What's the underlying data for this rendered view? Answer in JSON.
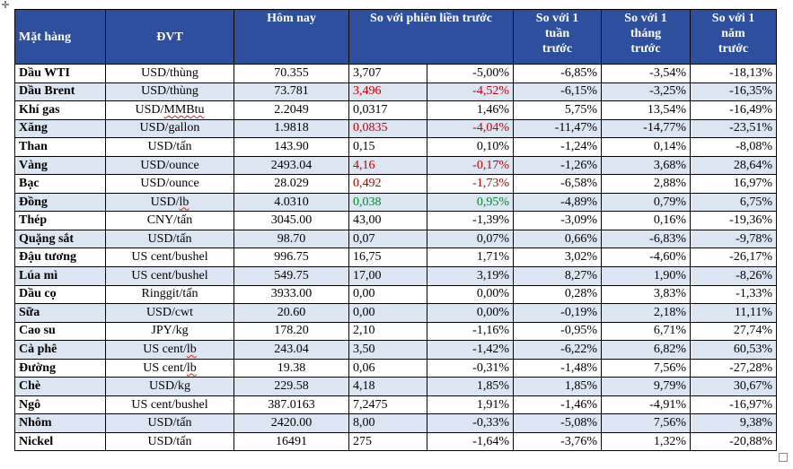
{
  "headers": {
    "name": "Mặt hàng",
    "unit": "ĐVT",
    "price": "Hôm nay",
    "prev_session": "So với phiên liền trước",
    "week_l1": "So với 1",
    "week_l2": "tuần",
    "week_l3": "trước",
    "month_l1": "So với 1",
    "month_l2": "tháng",
    "month_l3": "trước",
    "year_l1": "So với 1",
    "year_l2": "năm",
    "year_l3": "trước"
  },
  "rows": [
    {
      "name": "Dầu WTI",
      "unit": "USD/thùng",
      "price": "70.355",
      "chg": "3,707",
      "pct": "-5,00%",
      "w": "-6,85%",
      "m": "-3,54%",
      "y": "-18,13%",
      "color": ""
    },
    {
      "name": "Dầu Brent",
      "unit": "USD/thùng",
      "price": "73.781",
      "chg": "3,496",
      "pct": "-4,52%",
      "w": "-6,15%",
      "m": "-3,25%",
      "y": "-16,35%",
      "color": "red"
    },
    {
      "name": "Khí gas",
      "unit": "USD/MMBtu",
      "price": "2.2049",
      "chg": "0,0317",
      "pct": "1,46%",
      "w": "5,75%",
      "m": "13,54%",
      "y": "-16,49%",
      "color": ""
    },
    {
      "name": "Xăng",
      "unit": "USD/gallon",
      "price": "1.9818",
      "chg": "0,0835",
      "pct": "-4,04%",
      "w": "-11,47%",
      "m": "-14,77%",
      "y": "-23,51%",
      "color": "red"
    },
    {
      "name": "Than",
      "unit": "USD/tấn",
      "price": "143.90",
      "chg": "0,15",
      "pct": "0,10%",
      "w": "-1,24%",
      "m": "0,14%",
      "y": "-8,08%",
      "color": ""
    },
    {
      "name": "Vàng",
      "unit": "USD/ounce",
      "price": "2493.04",
      "chg": "4,16",
      "pct": "-0,17%",
      "w": "-1,26%",
      "m": "3,68%",
      "y": "28,64%",
      "color": "red"
    },
    {
      "name": "Bạc",
      "unit": "USD/ounce",
      "price": "28.029",
      "chg": "0,492",
      "pct": "-1,73%",
      "w": "-6,58%",
      "m": "2,88%",
      "y": "16,97%",
      "color": "red"
    },
    {
      "name": "Đồng",
      "unit": "USD/lb",
      "price": "4.0310",
      "chg": "0,038",
      "pct": "0,95%",
      "w": "-4,89%",
      "m": "0,79%",
      "y": "6,75%",
      "color": "green"
    },
    {
      "name": "Thép",
      "unit": "CNY/tấn",
      "price": "3045.00",
      "chg": "43,00",
      "pct": "-1,39%",
      "w": "-3,09%",
      "m": "0,16%",
      "y": "-19,36%",
      "color": ""
    },
    {
      "name": "Quặng sắt",
      "unit": "USD/tấn",
      "price": "98.70",
      "chg": "0,07",
      "pct": "0,07%",
      "w": "0,66%",
      "m": "-6,83%",
      "y": "-9,78%",
      "color": ""
    },
    {
      "name": "Đậu tương",
      "unit": "US cent/bushel",
      "price": "996.75",
      "chg": "16,75",
      "pct": "1,71%",
      "w": "3,02%",
      "m": "-4,60%",
      "y": "-26,17%",
      "color": ""
    },
    {
      "name": "Lúa mì",
      "unit": "US cent/bushel",
      "price": "549.75",
      "chg": "17,00",
      "pct": "3,19%",
      "w": "8,27%",
      "m": "1,90%",
      "y": "-8,26%",
      "color": ""
    },
    {
      "name": "Dầu cọ",
      "unit": "Ringgit/tấn",
      "price": "3933.00",
      "chg": "0,00",
      "pct": "0,00%",
      "w": "0,28%",
      "m": "3,83%",
      "y": "-1,33%",
      "color": ""
    },
    {
      "name": "Sữa",
      "unit": "USD/cwt",
      "price": "20.60",
      "chg": "0,00",
      "pct": "0,00%",
      "w": "-0,19%",
      "m": "2,18%",
      "y": "11,11%",
      "color": ""
    },
    {
      "name": "Cao su",
      "unit": "JPY/kg",
      "price": "178.20",
      "chg": "2,10",
      "pct": "-1,16%",
      "w": "-0,95%",
      "m": "6,71%",
      "y": "27,74%",
      "color": ""
    },
    {
      "name": "Cà phê",
      "unit": "US cent/lb",
      "price": "243.04",
      "chg": "3,50",
      "pct": "-1,42%",
      "w": "-6,22%",
      "m": "6,82%",
      "y": "60,53%",
      "color": ""
    },
    {
      "name": "Đường",
      "unit": "US cent/lb",
      "price": "19.38",
      "chg": "0,06",
      "pct": "-0,31%",
      "w": "-1,48%",
      "m": "7,56%",
      "y": "-27,28%",
      "color": ""
    },
    {
      "name": "Chè",
      "unit": "USD/kg",
      "price": "229.58",
      "chg": "4,18",
      "pct": "1,85%",
      "w": "1,85%",
      "m": "9,79%",
      "y": "30,67%",
      "color": ""
    },
    {
      "name": "Ngô",
      "unit": "US cent/bushel",
      "price": "387.0163",
      "chg": "7,2475",
      "pct": "1,91%",
      "w": "-1,46%",
      "m": "-4,91%",
      "y": "-16,97%",
      "color": ""
    },
    {
      "name": "Nhôm",
      "unit": "USD/tấn",
      "price": "2420.00",
      "chg": "8,00",
      "pct": "-0,33%",
      "w": "-5,08%",
      "m": "7,56%",
      "y": "9,38%",
      "color": ""
    },
    {
      "name": "Nickel",
      "unit": "USD/tấn",
      "price": "16491",
      "chg": "275",
      "pct": "-1,64%",
      "w": "-3,76%",
      "m": "1,32%",
      "y": "-20,88%",
      "color": ""
    }
  ],
  "colors": {
    "header_bg": "#2e4f9e",
    "stripe_bg": "#dce6f2",
    "negative_red": "#c00000",
    "positive_green": "#00862d"
  },
  "icons": {
    "move_handle": "move-icon",
    "resize_handle": "resize-handle-icon"
  }
}
